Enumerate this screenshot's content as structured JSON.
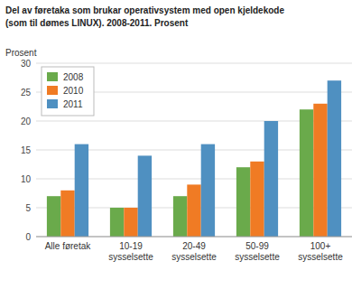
{
  "chart_data": {
    "type": "bar",
    "title": "Del av føretaka som brukar operativsystem med open kjeldekode",
    "subtitle": "(som til dømes LINUX). 2008-2011. Prosent",
    "ylabel": "Prosent",
    "categories": [
      "Alle føretak",
      "10-19\nsysselsette",
      "20-49\nsysselsette",
      "50-99\nsysselsette",
      "100+\nsysselsette"
    ],
    "series": [
      {
        "name": "2008",
        "color": "#6aaa4b",
        "values": [
          7,
          5,
          7,
          12,
          22
        ]
      },
      {
        "name": "2010",
        "color": "#f07b24",
        "values": [
          8,
          5,
          9,
          13,
          23
        ]
      },
      {
        "name": "2011",
        "color": "#4f90c1",
        "values": [
          16,
          14,
          16,
          20,
          27
        ]
      }
    ],
    "ylim": [
      0,
      30
    ],
    "yticks": [
      0,
      5,
      10,
      15,
      20,
      25,
      30
    ],
    "grid": true,
    "legend": "upper left"
  }
}
